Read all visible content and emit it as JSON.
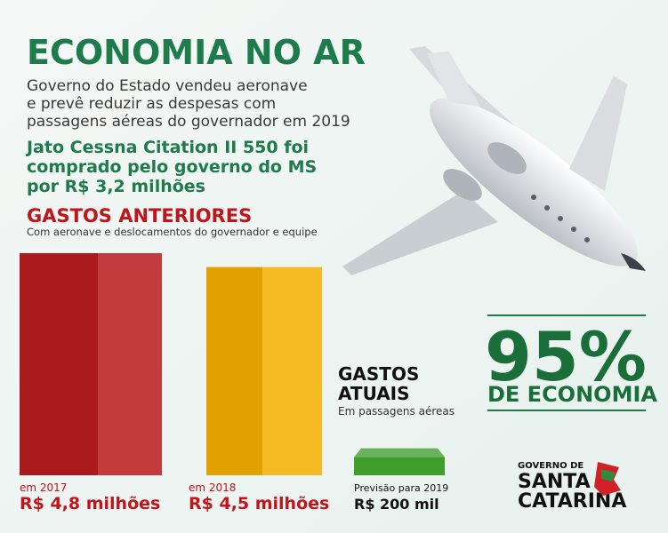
{
  "chart_data": {
    "type": "bar",
    "title": "ECONOMIA NO AR",
    "subtitle": [
      "Governo do Estado vendeu aeronave",
      "e prevê reduzir as despesas com",
      "passagens aéreas do governador em 2019"
    ],
    "headline": [
      "Jato Cessna Citation II 550 foi",
      "comprado pelo governo do MS",
      "por R$ 3,2 milhões"
    ],
    "section_past": "GASTOS ANTERIORES",
    "section_past_note": "Com aeronave e deslocamentos do governador e equipe",
    "section_now": [
      "GASTOS",
      "ATUAIS"
    ],
    "section_now_note": "Em passagens aéreas",
    "highlight": "95%",
    "highlight_note": "DE ECONOMIA",
    "categories": [
      "em 2017",
      "em 2018",
      "Previsão para 2019"
    ],
    "values": [
      4.8,
      4.5,
      0.2
    ],
    "value_labels": [
      "R$ 4,8 milhões",
      "R$ 4,5 milhões",
      "R$ 200 mil"
    ],
    "colors": [
      "#b81d1f",
      "#f5b000",
      "#3f9e2c"
    ],
    "logo": [
      "GOVERNO DE",
      "SANTA",
      "CATARINA"
    ]
  }
}
